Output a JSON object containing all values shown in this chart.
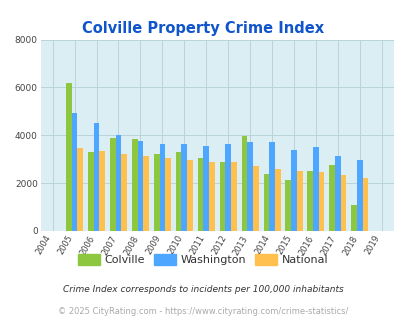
{
  "title": "Colville Property Crime Index",
  "years": [
    2004,
    2005,
    2006,
    2007,
    2008,
    2009,
    2010,
    2011,
    2012,
    2013,
    2014,
    2015,
    2016,
    2017,
    2018,
    2019
  ],
  "colville": [
    0,
    6200,
    3300,
    3900,
    3850,
    3200,
    3300,
    3050,
    2900,
    3950,
    2400,
    2150,
    2500,
    2750,
    1100,
    0
  ],
  "washington": [
    0,
    4950,
    4500,
    4000,
    3750,
    3650,
    3650,
    3550,
    3650,
    3700,
    3700,
    3400,
    3500,
    3150,
    2950,
    0
  ],
  "national": [
    0,
    3450,
    3350,
    3200,
    3150,
    3050,
    2950,
    2900,
    2900,
    2700,
    2600,
    2500,
    2450,
    2350,
    2200,
    0
  ],
  "colville_color": "#8dc63f",
  "washington_color": "#4da6ff",
  "national_color": "#ffc04d",
  "plot_bg": "#daeef3",
  "ylim": [
    0,
    8000
  ],
  "yticks": [
    0,
    2000,
    4000,
    6000,
    8000
  ],
  "grid_color": "#b8d4da",
  "legend_labels": [
    "Colville",
    "Washington",
    "National"
  ],
  "footnote1": "Crime Index corresponds to incidents per 100,000 inhabitants",
  "footnote2": "© 2025 CityRating.com - https://www.cityrating.com/crime-statistics/",
  "title_color": "#1155cc",
  "footnote1_color": "#333333",
  "footnote2_color": "#aaaaaa"
}
